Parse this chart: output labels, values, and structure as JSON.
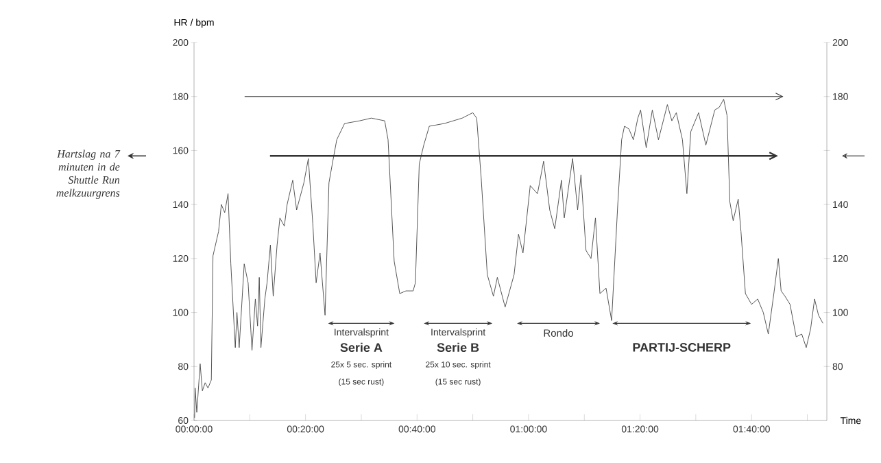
{
  "chart_data": {
    "type": "line",
    "xlabel": "Time",
    "ylabel": "HR / bpm",
    "x": [
      0.0017,
      0.0033,
      0.0083,
      0.0183,
      0.025,
      0.0333,
      0.0417,
      0.0517,
      0.0567,
      0.0733,
      0.0817,
      0.0917,
      0.1017,
      0.11,
      0.1233,
      0.1283,
      0.135,
      0.15,
      0.1617,
      0.1733,
      0.1833,
      0.19,
      0.195,
      0.2,
      0.2117,
      0.2183,
      0.2283,
      0.2367,
      0.2483,
      0.2567,
      0.27,
      0.2783,
      0.295,
      0.3067,
      0.3283,
      0.3417,
      0.355,
      0.365,
      0.3767,
      0.3917,
      0.4033,
      0.4133,
      0.4267,
      0.45,
      0.495,
      0.53,
      0.57,
      0.58,
      0.5983,
      0.615,
      0.6333,
      0.655,
      0.6617,
      0.6733,
      0.6867,
      0.7033,
      0.7483,
      0.8017,
      0.8333,
      0.845,
      0.8583,
      0.8767,
      0.895,
      0.9067,
      0.93,
      0.9567,
      0.97,
      0.9833,
      1.005,
      1.0267,
      1.045,
      1.0633,
      1.0783,
      1.0983,
      1.1067,
      1.1317,
      1.1467,
      1.1567,
      1.1717,
      1.1867,
      1.2,
      1.2133,
      1.2317,
      1.2483,
      1.2667,
      1.2783,
      1.2867,
      1.3,
      1.3133,
      1.3267,
      1.335,
      1.3517,
      1.37,
      1.3883,
      1.415,
      1.4283,
      1.4417,
      1.46,
      1.4733,
      1.485,
      1.5083,
      1.53,
      1.5567,
      1.57,
      1.5833,
      1.5933,
      1.6017,
      1.6117,
      1.6267,
      1.635,
      1.6483,
      1.6667,
      1.685,
      1.7017,
      1.7167,
      1.7333,
      1.7467,
      1.755,
      1.7667,
      1.7817,
      1.8,
      1.8167,
      1.83,
      1.8433,
      1.855,
      1.8667,
      1.88
    ],
    "series": [
      {
        "color": "#444444",
        "values": [
          61,
          72,
          63,
          81,
          71,
          74,
          72,
          75,
          121,
          130,
          140,
          137,
          144,
          118,
          87,
          100,
          87,
          118,
          111,
          86,
          105,
          95,
          113,
          87,
          105,
          111,
          125,
          106,
          125,
          135,
          132,
          140,
          149,
          138,
          148,
          157,
          133,
          111,
          122,
          99,
          148,
          155,
          164,
          170,
          171,
          172,
          171,
          164,
          119,
          107,
          108,
          108,
          111,
          155,
          162,
          169,
          170,
          172,
          174,
          172,
          150,
          114,
          106,
          113,
          102,
          114,
          129,
          122,
          147,
          144,
          156,
          138,
          131,
          149,
          135,
          157,
          138,
          151,
          123,
          120,
          135,
          107,
          109,
          97,
          140,
          164,
          169,
          168,
          164,
          172,
          175,
          161,
          175,
          164,
          177,
          171,
          174,
          164,
          144,
          167,
          174,
          162,
          175,
          176,
          179,
          173,
          141,
          134,
          142,
          130,
          107,
          103,
          105,
          100,
          92,
          107,
          120,
          108,
          106,
          103,
          91,
          92,
          87,
          94,
          105,
          99,
          96
        ]
      }
    ],
    "xlim": [
      0,
      1.8917
    ],
    "xticks": [
      {
        "value": 0,
        "label": "00:00:00"
      },
      {
        "value": 0.1667,
        "label": null
      },
      {
        "value": 0.3333,
        "label": "00:20:00"
      },
      {
        "value": 0.5,
        "label": null
      },
      {
        "value": 0.6667,
        "label": "00:40:00"
      },
      {
        "value": 0.8333,
        "label": null
      },
      {
        "value": 1,
        "label": "01:00:00"
      },
      {
        "value": 1.1667,
        "label": null
      },
      {
        "value": 1.3333,
        "label": "01:20:00"
      },
      {
        "value": 1.5,
        "label": null
      },
      {
        "value": 1.6667,
        "label": "01:40:00"
      },
      {
        "value": 1.8333,
        "label": null
      }
    ],
    "ylim": [
      60,
      200
    ],
    "yticks": [
      60,
      80,
      100,
      120,
      140,
      160,
      180,
      200
    ],
    "y2lim": [
      60,
      200
    ],
    "y2ticks": [
      80,
      100,
      120,
      140,
      {
        "value": 160,
        "label": null
      },
      180,
      200
    ],
    "ref_lines": [
      {
        "axis": "y",
        "value": 180,
        "color": "#333333"
      },
      {
        "axis": "y",
        "value": 158,
        "color": "#333333",
        "label": "Hartslag na 7 minuten in de Shuttle Run melkzuurgrens"
      }
    ],
    "annotations": [
      "Intervalsprint",
      "Intervalsprint",
      "Rondo",
      "PARTIJ-SCHERP",
      "Serie A",
      "25x 5 sec. sprint",
      "(15 sec rust)",
      "Serie B",
      "25x 10 sec. sprint",
      "(15 sec rust)"
    ]
  }
}
